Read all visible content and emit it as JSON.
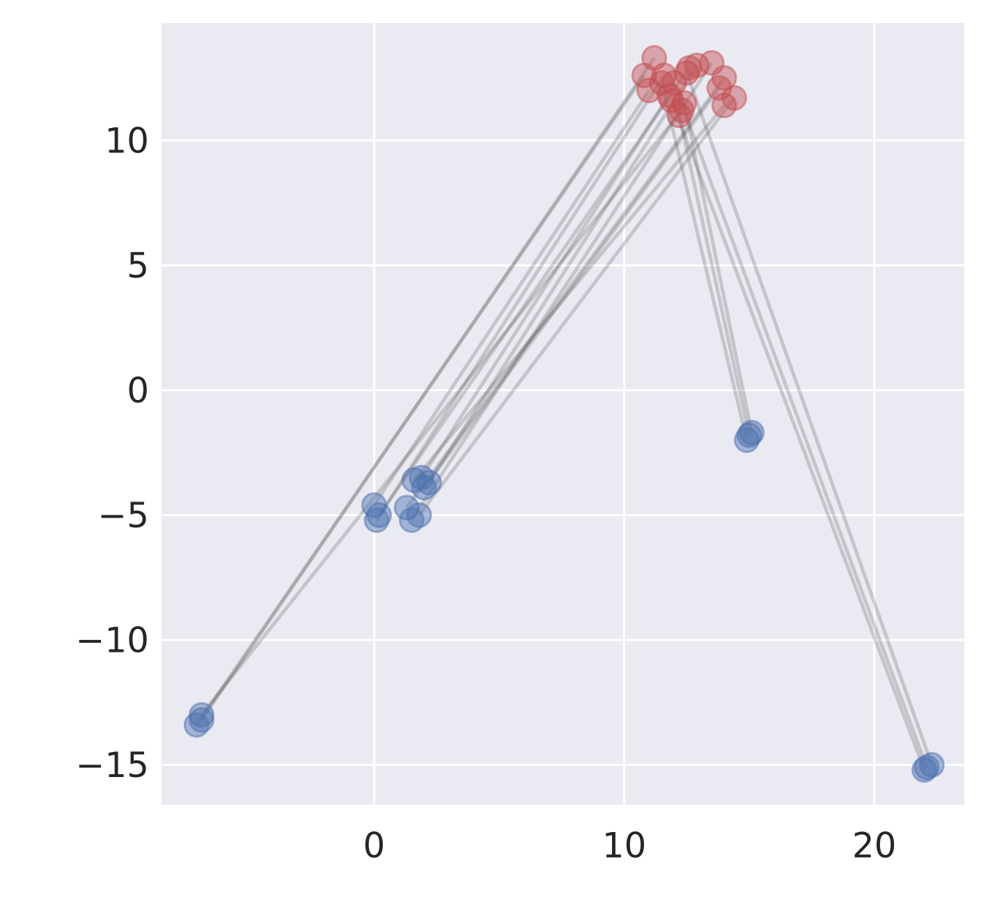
{
  "chart_data": {
    "type": "scatter",
    "connect_pairs": true,
    "link_color": "#404040",
    "background": "#eaeaf2",
    "grid": true,
    "xlim": [
      -8.5,
      23.6
    ],
    "ylim": [
      -16.6,
      14.7
    ],
    "xticks": [
      0,
      10,
      20
    ],
    "yticks": [
      {
        "value": -15,
        "label": "−15"
      },
      {
        "value": -10,
        "label": "−10"
      },
      {
        "value": -5,
        "label": "−5"
      },
      0,
      5,
      10
    ],
    "series": [
      {
        "color": "#4c72b0",
        "x": [
          -6.9,
          -7.1,
          -6.9,
          0.0,
          0.2,
          0.1,
          1.3,
          1.5,
          1.8,
          1.6,
          2.0,
          2.2,
          1.9,
          15.0,
          15.1,
          14.9,
          22.1,
          22.3,
          22.0
        ],
        "values": [
          -13.2,
          -13.4,
          -13.0,
          -4.6,
          -5.0,
          -5.2,
          -4.7,
          -5.2,
          -5.0,
          -3.6,
          -3.9,
          -3.7,
          -3.5,
          -1.8,
          -1.7,
          -2.0,
          -15.1,
          -15.0,
          -15.2
        ]
      },
      {
        "color": "#c44e52",
        "x": [
          11.2,
          10.8,
          12.3,
          11.0,
          12.6,
          11.6,
          14.0,
          13.5,
          14.4,
          14.0,
          13.8,
          12.9,
          11.8,
          12.2,
          12.4,
          11.5,
          12.0,
          12.5,
          11.9
        ],
        "values": [
          13.3,
          12.6,
          11.2,
          12.0,
          12.9,
          12.6,
          12.5,
          13.1,
          11.7,
          11.4,
          12.1,
          13.0,
          11.8,
          11.0,
          11.5,
          12.3,
          12.3,
          12.7,
          11.6
        ]
      }
    ]
  }
}
